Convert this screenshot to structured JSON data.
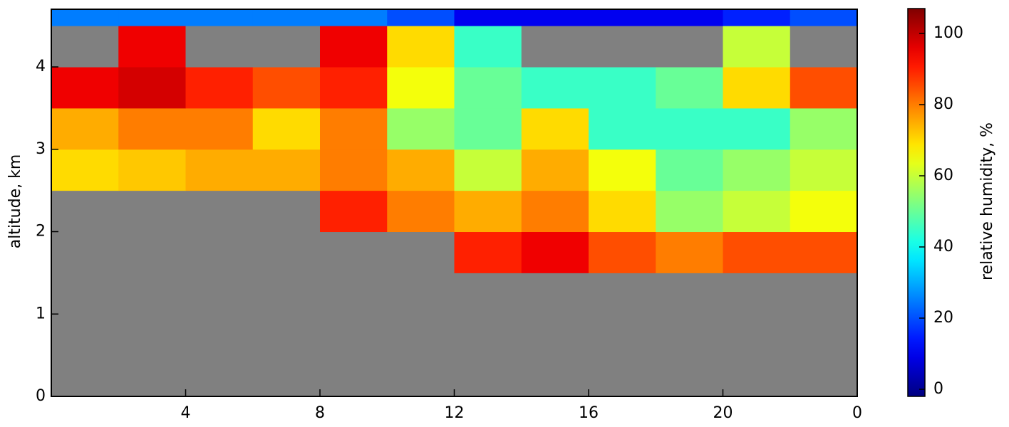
{
  "chart_data": {
    "type": "heatmap",
    "xbins": [
      0,
      2,
      4,
      6,
      8,
      10,
      12,
      14,
      16,
      18,
      20,
      22,
      24
    ],
    "ybins": [
      0,
      0.5,
      1,
      1.5,
      2,
      2.5,
      3,
      3.5,
      4,
      4.5,
      4.7
    ],
    "values": [
      [
        null,
        null,
        null,
        null,
        null,
        null,
        null,
        null,
        null,
        null,
        null,
        null
      ],
      [
        null,
        null,
        null,
        null,
        null,
        null,
        null,
        null,
        null,
        null,
        null,
        null
      ],
      [
        null,
        null,
        null,
        null,
        null,
        null,
        null,
        null,
        null,
        null,
        null,
        null
      ],
      [
        null,
        null,
        null,
        null,
        null,
        null,
        90,
        95,
        85,
        80,
        85,
        85
      ],
      [
        null,
        null,
        null,
        null,
        90,
        80,
        75,
        80,
        70,
        55,
        60,
        65
      ],
      [
        70,
        72,
        75,
        75,
        80,
        75,
        60,
        75,
        65,
        50,
        55,
        60
      ],
      [
        75,
        80,
        80,
        70,
        80,
        55,
        50,
        70,
        45,
        45,
        45,
        55
      ],
      [
        95,
        98,
        90,
        85,
        90,
        65,
        50,
        45,
        45,
        50,
        70,
        85
      ],
      [
        null,
        95,
        null,
        null,
        95,
        70,
        45,
        null,
        null,
        null,
        60,
        null
      ],
      [
        25,
        25,
        25,
        25,
        25,
        20,
        10,
        10,
        10,
        10,
        15,
        20
      ]
    ],
    "colormap": "jet",
    "null_color": "#808080",
    "xlim": [
      0,
      24
    ],
    "xticks": [
      4,
      8,
      12,
      16,
      20,
      {
        "value": 24,
        "label": "0"
      }
    ],
    "ylim": [
      0,
      4.7
    ],
    "yticks": [
      0,
      1,
      2,
      3,
      4
    ],
    "ylabel": "altitude, km",
    "clim": [
      -2,
      107
    ],
    "cticks": [
      0,
      20,
      40,
      60,
      80,
      100
    ],
    "clabel": "relative humidity, %"
  }
}
